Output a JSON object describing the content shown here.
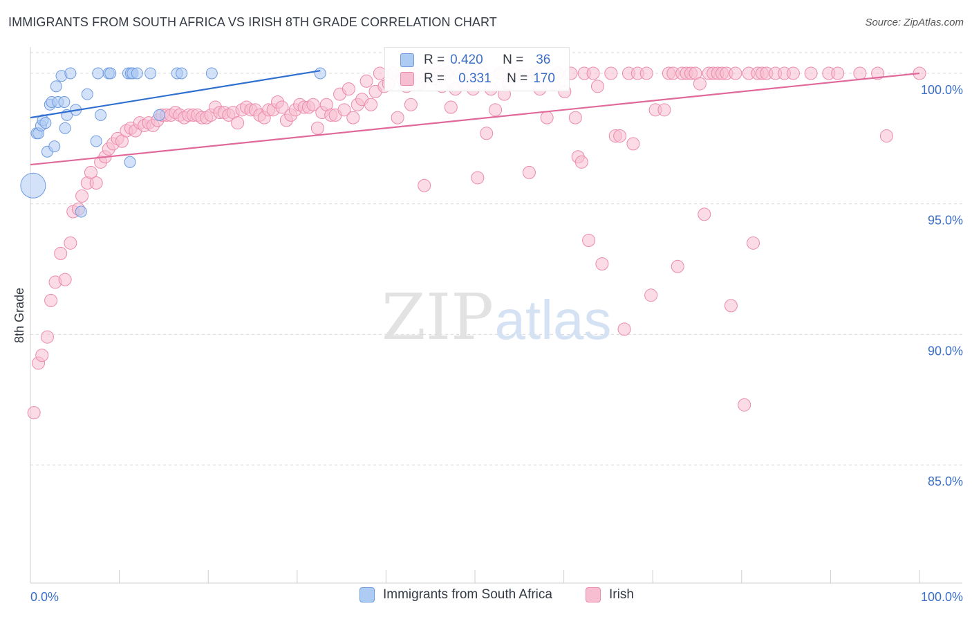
{
  "title": "IMMIGRANTS FROM SOUTH AFRICA VS IRISH 8TH GRADE CORRELATION CHART",
  "source": "Source: ZipAtlas.com",
  "watermark": {
    "zip": "ZIP",
    "atlas": "atlas"
  },
  "legend": {
    "series1": "Immigrants from South Africa",
    "series2": "Irish"
  },
  "stats": {
    "row1": {
      "r_label": "R =",
      "r_value": "0.420",
      "n_label": "N =",
      "n_value": "36"
    },
    "row2": {
      "r_label": "R =",
      "r_value": "0.331",
      "n_label": "N =",
      "n_value": "170"
    }
  },
  "colors": {
    "blue_fill": "#aecbf4",
    "blue_stroke": "#6d9be0",
    "blue_line": "#2f6fd0",
    "pink_fill": "#f7bdd0",
    "pink_stroke": "#eb8aab",
    "pink_line": "#e0689a",
    "axis_text": "#3b6fc7",
    "grid": "#d9d9d9"
  },
  "chart_data": {
    "type": "scatter",
    "title": "IMMIGRANTS FROM SOUTH AFRICA VS IRISH 8TH GRADE CORRELATION CHART",
    "xlabel": "",
    "ylabel": "8th Grade",
    "xlim": [
      0,
      100
    ],
    "ylim": [
      80.5,
      100.9
    ],
    "x_tick_labels": [
      "0.0%",
      "100.0%"
    ],
    "y_ticks": [
      100,
      95,
      90,
      85
    ],
    "y_tick_labels": [
      "100.0%",
      "95.0%",
      "90.0%",
      "85.0%"
    ],
    "grid": true,
    "series": [
      {
        "name": "Immigrants from South Africa",
        "r": 0.42,
        "n": 36,
        "trend": {
          "x": [
            0,
            32.6
          ],
          "y": [
            98.3,
            100.1
          ]
        },
        "points": [
          [
            0.3,
            95.7,
            18
          ],
          [
            0.7,
            97.7,
            8
          ],
          [
            0.9,
            97.7,
            8
          ],
          [
            1.2,
            98.0,
            8
          ],
          [
            1.4,
            98.2,
            8
          ],
          [
            1.7,
            98.1,
            8
          ],
          [
            1.9,
            97.0,
            8
          ],
          [
            2.2,
            98.8,
            8
          ],
          [
            2.4,
            98.9,
            8
          ],
          [
            2.7,
            97.2,
            8
          ],
          [
            2.9,
            99.5,
            8
          ],
          [
            3.1,
            98.9,
            8
          ],
          [
            3.5,
            99.9,
            8
          ],
          [
            3.8,
            98.9,
            8
          ],
          [
            3.9,
            97.9,
            8
          ],
          [
            4.1,
            98.4,
            8
          ],
          [
            4.5,
            100.0,
            8
          ],
          [
            5.1,
            98.6,
            8
          ],
          [
            5.7,
            94.7,
            8
          ],
          [
            6.4,
            99.2,
            8
          ],
          [
            7.4,
            97.4,
            8
          ],
          [
            7.6,
            100.0,
            8
          ],
          [
            7.9,
            98.4,
            8
          ],
          [
            8.8,
            100.0,
            8
          ],
          [
            9.0,
            100.0,
            8
          ],
          [
            11.0,
            100.0,
            8
          ],
          [
            11.3,
            100.0,
            8
          ],
          [
            11.5,
            100.0,
            8
          ],
          [
            12.0,
            100.0,
            8
          ],
          [
            11.2,
            96.6,
            8
          ],
          [
            13.5,
            100.0,
            8
          ],
          [
            14.5,
            98.4,
            8
          ],
          [
            16.5,
            100.0,
            8
          ],
          [
            17.0,
            100.0,
            8
          ],
          [
            20.4,
            100.0,
            8
          ],
          [
            32.6,
            100.0,
            8
          ]
        ]
      },
      {
        "name": "Irish",
        "r": 0.331,
        "n": 170,
        "trend": {
          "x": [
            0,
            100
          ],
          "y": [
            96.5,
            100.0
          ]
        },
        "points": [
          [
            0.4,
            87.0,
            9
          ],
          [
            0.9,
            88.9,
            9
          ],
          [
            1.3,
            89.2,
            9
          ],
          [
            1.9,
            89.9,
            9
          ],
          [
            2.3,
            91.3,
            9
          ],
          [
            2.8,
            92.0,
            9
          ],
          [
            3.4,
            93.1,
            9
          ],
          [
            3.9,
            92.1,
            9
          ],
          [
            4.5,
            93.5,
            9
          ],
          [
            4.8,
            94.7,
            9
          ],
          [
            5.4,
            94.8,
            9
          ],
          [
            5.8,
            95.3,
            9
          ],
          [
            6.4,
            95.8,
            9
          ],
          [
            6.8,
            96.2,
            9
          ],
          [
            7.4,
            95.8,
            9
          ],
          [
            7.9,
            96.6,
            9
          ],
          [
            8.4,
            96.8,
            9
          ],
          [
            8.8,
            97.1,
            9
          ],
          [
            9.3,
            97.3,
            9
          ],
          [
            9.8,
            97.5,
            9
          ],
          [
            10.3,
            97.4,
            9
          ],
          [
            10.8,
            97.8,
            9
          ],
          [
            11.3,
            97.9,
            9
          ],
          [
            11.8,
            97.8,
            9
          ],
          [
            12.3,
            98.1,
            9
          ],
          [
            12.8,
            98.0,
            9
          ],
          [
            13.3,
            98.1,
            9
          ],
          [
            13.8,
            98.0,
            9
          ],
          [
            14.3,
            98.2,
            9
          ],
          [
            14.8,
            98.4,
            9
          ],
          [
            15.3,
            98.4,
            9
          ],
          [
            15.8,
            98.4,
            9
          ],
          [
            16.3,
            98.5,
            9
          ],
          [
            16.8,
            98.4,
            9
          ],
          [
            17.3,
            98.3,
            9
          ],
          [
            17.8,
            98.4,
            9
          ],
          [
            18.3,
            98.4,
            9
          ],
          [
            18.8,
            98.4,
            9
          ],
          [
            19.3,
            98.3,
            9
          ],
          [
            19.8,
            98.3,
            9
          ],
          [
            20.3,
            98.4,
            9
          ],
          [
            20.8,
            98.7,
            9
          ],
          [
            21.3,
            98.5,
            9
          ],
          [
            21.8,
            98.5,
            9
          ],
          [
            22.3,
            98.4,
            9
          ],
          [
            22.8,
            98.5,
            9
          ],
          [
            23.3,
            98.1,
            9
          ],
          [
            23.8,
            98.6,
            9
          ],
          [
            24.3,
            98.7,
            9
          ],
          [
            24.8,
            98.6,
            9
          ],
          [
            25.3,
            98.6,
            9
          ],
          [
            25.8,
            98.4,
            9
          ],
          [
            26.3,
            98.3,
            9
          ],
          [
            26.8,
            98.6,
            9
          ],
          [
            27.3,
            98.6,
            9
          ],
          [
            27.8,
            98.9,
            9
          ],
          [
            28.3,
            98.7,
            9
          ],
          [
            28.8,
            98.2,
            9
          ],
          [
            29.3,
            98.4,
            9
          ],
          [
            29.8,
            98.6,
            9
          ],
          [
            30.3,
            98.8,
            9
          ],
          [
            30.8,
            98.7,
            9
          ],
          [
            31.3,
            98.7,
            9
          ],
          [
            31.8,
            98.8,
            9
          ],
          [
            32.3,
            97.9,
            9
          ],
          [
            32.8,
            98.5,
            9
          ],
          [
            33.3,
            98.8,
            9
          ],
          [
            33.8,
            98.4,
            9
          ],
          [
            34.3,
            98.4,
            9
          ],
          [
            34.8,
            99.2,
            9
          ],
          [
            35.3,
            98.6,
            9
          ],
          [
            35.8,
            99.4,
            9
          ],
          [
            36.3,
            98.3,
            9
          ],
          [
            36.8,
            98.8,
            9
          ],
          [
            37.3,
            99.0,
            9
          ],
          [
            37.8,
            99.7,
            9
          ],
          [
            38.3,
            98.8,
            9
          ],
          [
            38.8,
            99.3,
            9
          ],
          [
            39.3,
            100.0,
            9
          ],
          [
            39.8,
            99.5,
            9
          ],
          [
            40.3,
            99.6,
            9
          ],
          [
            40.8,
            100.0,
            9
          ],
          [
            41.3,
            98.3,
            9
          ],
          [
            41.8,
            99.8,
            9
          ],
          [
            42.3,
            99.5,
            9
          ],
          [
            42.8,
            98.8,
            9
          ],
          [
            43.3,
            100.0,
            9
          ],
          [
            43.8,
            99.6,
            9
          ],
          [
            44.3,
            95.7,
            9
          ],
          [
            44.8,
            100.0,
            9
          ],
          [
            45.3,
            99.8,
            9
          ],
          [
            45.8,
            100.0,
            9
          ],
          [
            46.3,
            99.5,
            9
          ],
          [
            46.8,
            100.0,
            9
          ],
          [
            47.3,
            98.7,
            9
          ],
          [
            47.8,
            99.4,
            9
          ],
          [
            48.3,
            100.0,
            9
          ],
          [
            48.8,
            99.6,
            9
          ],
          [
            49.3,
            100.0,
            9
          ],
          [
            49.8,
            99.4,
            9
          ],
          [
            50.3,
            96.0,
            9
          ],
          [
            50.8,
            100.0,
            9
          ],
          [
            51.3,
            97.7,
            9
          ],
          [
            51.8,
            99.4,
            9
          ],
          [
            52.3,
            98.6,
            9
          ],
          [
            52.8,
            100.0,
            9
          ],
          [
            53.3,
            99.2,
            9
          ],
          [
            53.8,
            99.6,
            9
          ],
          [
            54.3,
            100.0,
            9
          ],
          [
            55.3,
            99.9,
            9
          ],
          [
            56.1,
            96.2,
            9
          ],
          [
            56.8,
            100.0,
            9
          ],
          [
            57.3,
            99.4,
            9
          ],
          [
            58.1,
            98.3,
            9
          ],
          [
            58.8,
            99.6,
            9
          ],
          [
            59.3,
            100.0,
            9
          ],
          [
            60.1,
            99.3,
            9
          ],
          [
            60.8,
            100.0,
            9
          ],
          [
            61.3,
            98.3,
            9
          ],
          [
            61.6,
            96.8,
            9
          ],
          [
            62.0,
            96.6,
            9
          ],
          [
            62.3,
            100.0,
            9
          ],
          [
            62.8,
            93.6,
            9
          ],
          [
            63.3,
            100.0,
            9
          ],
          [
            63.8,
            99.5,
            9
          ],
          [
            64.3,
            92.7,
            9
          ],
          [
            65.3,
            100.0,
            9
          ],
          [
            65.8,
            97.6,
            9
          ],
          [
            66.3,
            97.6,
            9
          ],
          [
            66.8,
            90.2,
            9
          ],
          [
            67.3,
            100.0,
            9
          ],
          [
            67.8,
            97.3,
            9
          ],
          [
            68.3,
            100.0,
            9
          ],
          [
            69.3,
            100.0,
            9
          ],
          [
            69.8,
            91.5,
            9
          ],
          [
            70.3,
            98.6,
            9
          ],
          [
            71.3,
            98.6,
            9
          ],
          [
            71.8,
            100.0,
            9
          ],
          [
            72.3,
            100.0,
            9
          ],
          [
            72.8,
            92.6,
            9
          ],
          [
            73.3,
            100.0,
            9
          ],
          [
            73.8,
            100.0,
            9
          ],
          [
            74.3,
            100.0,
            9
          ],
          [
            74.8,
            100.0,
            9
          ],
          [
            75.3,
            99.6,
            9
          ],
          [
            75.8,
            94.6,
            9
          ],
          [
            76.3,
            100.0,
            9
          ],
          [
            76.8,
            100.0,
            9
          ],
          [
            77.3,
            100.0,
            9
          ],
          [
            77.8,
            100.0,
            9
          ],
          [
            78.3,
            100.0,
            9
          ],
          [
            78.8,
            91.1,
            9
          ],
          [
            79.3,
            100.0,
            9
          ],
          [
            80.3,
            87.3,
            9
          ],
          [
            80.8,
            100.0,
            9
          ],
          [
            81.3,
            93.5,
            9
          ],
          [
            81.8,
            100.0,
            9
          ],
          [
            82.3,
            100.0,
            9
          ],
          [
            82.8,
            100.0,
            9
          ],
          [
            83.8,
            100.0,
            9
          ],
          [
            84.8,
            100.0,
            9
          ],
          [
            85.8,
            100.0,
            9
          ],
          [
            87.8,
            100.0,
            9
          ],
          [
            89.8,
            100.0,
            9
          ],
          [
            90.8,
            100.0,
            9
          ],
          [
            93.3,
            100.0,
            9
          ],
          [
            95.3,
            100.0,
            9
          ],
          [
            96.3,
            97.6,
            9
          ],
          [
            100.0,
            100.0,
            9
          ]
        ]
      }
    ]
  }
}
